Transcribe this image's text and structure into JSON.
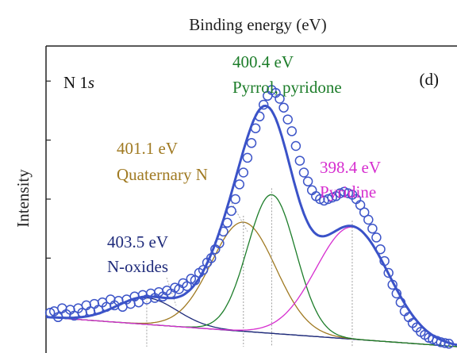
{
  "chart_data": {
    "type": "line",
    "title": "",
    "top_axis_label": "Binding energy (eV)",
    "ylabel": "Intensity",
    "panel_label": "(d)",
    "core_level": "N 1",
    "core_level_orbital": "s",
    "x_direction": "decreasing-left-to-right",
    "xlim": [
      406.0,
      395.8
    ],
    "ylim": [
      0.0,
      1.0
    ],
    "grid": false,
    "colors": {
      "axis": "#222222",
      "data_points": "#3d55c8",
      "envelope": "#3a52c8",
      "background": "#1c2a70",
      "n_oxides": "#1e2a7a",
      "quaternary": "#a07a22",
      "pyrrolic": "#1d7d2a",
      "pyridinic": "#d62ecf"
    },
    "peaks": [
      {
        "name": "N-oxides",
        "energy_label": "403.5 eV",
        "center": 403.5,
        "amplitude": 0.09,
        "sigma": 0.75,
        "color": "#1e2a7a"
      },
      {
        "name": "Quaternary N",
        "energy_label": "401.1 eV",
        "center": 401.1,
        "amplitude": 0.37,
        "sigma": 0.8,
        "color": "#a07a22"
      },
      {
        "name": "Pyrrol, pyridone",
        "energy_label": "400.4 eV",
        "center": 400.4,
        "amplitude": 0.47,
        "sigma": 0.6,
        "color": "#1d7d2a"
      },
      {
        "name": "Pyridine",
        "energy_label": "398.4 eV",
        "center": 398.4,
        "amplitude": 0.38,
        "sigma": 0.9,
        "color": "#d62ecf"
      }
    ],
    "background_line": {
      "x": [
        406.0,
        395.8
      ],
      "y": [
        0.1,
        0.0
      ]
    },
    "data_points": [
      [
        405.9,
        0.115
      ],
      [
        405.8,
        0.12
      ],
      [
        405.7,
        0.1
      ],
      [
        405.6,
        0.13
      ],
      [
        405.5,
        0.11
      ],
      [
        405.4,
        0.125
      ],
      [
        405.3,
        0.105
      ],
      [
        405.2,
        0.13
      ],
      [
        405.1,
        0.115
      ],
      [
        405.0,
        0.14
      ],
      [
        404.9,
        0.12
      ],
      [
        404.8,
        0.145
      ],
      [
        404.7,
        0.125
      ],
      [
        404.6,
        0.15
      ],
      [
        404.5,
        0.135
      ],
      [
        404.4,
        0.16
      ],
      [
        404.3,
        0.14
      ],
      [
        404.2,
        0.155
      ],
      [
        404.1,
        0.135
      ],
      [
        404.0,
        0.16
      ],
      [
        403.9,
        0.145
      ],
      [
        403.8,
        0.17
      ],
      [
        403.7,
        0.15
      ],
      [
        403.6,
        0.175
      ],
      [
        403.5,
        0.16
      ],
      [
        403.4,
        0.18
      ],
      [
        403.3,
        0.165
      ],
      [
        403.2,
        0.185
      ],
      [
        403.1,
        0.17
      ],
      [
        403.0,
        0.19
      ],
      [
        402.9,
        0.18
      ],
      [
        402.8,
        0.2
      ],
      [
        402.7,
        0.195
      ],
      [
        402.6,
        0.215
      ],
      [
        402.5,
        0.205
      ],
      [
        402.4,
        0.23
      ],
      [
        402.3,
        0.225
      ],
      [
        402.2,
        0.25
      ],
      [
        402.1,
        0.26
      ],
      [
        402.0,
        0.285
      ],
      [
        401.9,
        0.3
      ],
      [
        401.8,
        0.33
      ],
      [
        401.7,
        0.35
      ],
      [
        401.6,
        0.39
      ],
      [
        401.5,
        0.42
      ],
      [
        401.4,
        0.46
      ],
      [
        401.3,
        0.5
      ],
      [
        401.2,
        0.55
      ],
      [
        401.1,
        0.59
      ],
      [
        401.0,
        0.64
      ],
      [
        400.9,
        0.69
      ],
      [
        400.8,
        0.74
      ],
      [
        400.7,
        0.78
      ],
      [
        400.6,
        0.82
      ],
      [
        400.5,
        0.85
      ],
      [
        400.4,
        0.87
      ],
      [
        400.3,
        0.86
      ],
      [
        400.2,
        0.84
      ],
      [
        400.1,
        0.81
      ],
      [
        400.0,
        0.77
      ],
      [
        399.9,
        0.73
      ],
      [
        399.8,
        0.68
      ],
      [
        399.7,
        0.63
      ],
      [
        399.6,
        0.59
      ],
      [
        399.5,
        0.56
      ],
      [
        399.4,
        0.53
      ],
      [
        399.3,
        0.51
      ],
      [
        399.2,
        0.5
      ],
      [
        399.1,
        0.495
      ],
      [
        399.0,
        0.5
      ],
      [
        398.9,
        0.505
      ],
      [
        398.8,
        0.51
      ],
      [
        398.7,
        0.52
      ],
      [
        398.6,
        0.525
      ],
      [
        398.5,
        0.52
      ],
      [
        398.4,
        0.515
      ],
      [
        398.3,
        0.5
      ],
      [
        398.2,
        0.48
      ],
      [
        398.1,
        0.455
      ],
      [
        398.0,
        0.43
      ],
      [
        397.9,
        0.4
      ],
      [
        397.8,
        0.37
      ],
      [
        397.7,
        0.33
      ],
      [
        397.6,
        0.29
      ],
      [
        397.5,
        0.25
      ],
      [
        397.4,
        0.21
      ],
      [
        397.3,
        0.18
      ],
      [
        397.2,
        0.15
      ],
      [
        397.1,
        0.12
      ],
      [
        397.0,
        0.1
      ],
      [
        396.9,
        0.08
      ],
      [
        396.8,
        0.065
      ],
      [
        396.7,
        0.05
      ],
      [
        396.6,
        0.04
      ],
      [
        396.5,
        0.03
      ],
      [
        396.4,
        0.025
      ],
      [
        396.3,
        0.02
      ],
      [
        396.2,
        0.015
      ],
      [
        396.1,
        0.012
      ],
      [
        396.0,
        0.01
      ]
    ]
  }
}
